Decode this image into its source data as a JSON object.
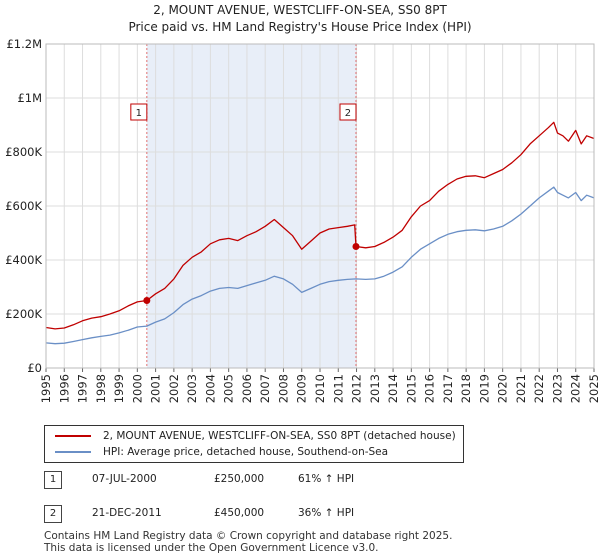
{
  "colors": {
    "property_line": "#c00000",
    "hpi_line": "#6a8fc6",
    "shade": "#e8eef8",
    "grid": "#dddddd",
    "marker_line": "#e07070"
  },
  "chart_data": {
    "type": "line",
    "title": "2, MOUNT AVENUE, WESTCLIFF-ON-SEA, SS0 8PT",
    "subtitle": "Price paid vs. HM Land Registry's House Price Index (HPI)",
    "xlabel": "",
    "ylabel": "",
    "xlim": [
      1995.0,
      2025.0
    ],
    "ylim": [
      0,
      1200000
    ],
    "yticks": [
      {
        "value": 0,
        "label": "£0"
      },
      {
        "value": 200000,
        "label": "£200K"
      },
      {
        "value": 400000,
        "label": "£400K"
      },
      {
        "value": 600000,
        "label": "£600K"
      },
      {
        "value": 800000,
        "label": "£800K"
      },
      {
        "value": 1000000,
        "label": "£1M"
      },
      {
        "value": 1200000,
        "label": "£1.2M"
      }
    ],
    "xticks": [
      "1995",
      "1996",
      "1997",
      "1998",
      "1999",
      "2000",
      "2001",
      "2002",
      "2003",
      "2004",
      "2005",
      "2006",
      "2007",
      "2008",
      "2009",
      "2010",
      "2011",
      "2012",
      "2013",
      "2014",
      "2015",
      "2016",
      "2017",
      "2018",
      "2019",
      "2020",
      "2021",
      "2022",
      "2023",
      "2024",
      "2025"
    ],
    "shaded_range": [
      2000.52,
      2011.97
    ],
    "series": [
      {
        "name": "2, MOUNT AVENUE, WESTCLIFF-ON-SEA, SS0 8PT (detached house)",
        "color": "#c00000",
        "x": [
          1995.0,
          1995.5,
          1996.0,
          1996.5,
          1997.0,
          1997.5,
          1998.0,
          1998.5,
          1999.0,
          1999.5,
          2000.0,
          2000.52,
          2001.0,
          2001.5,
          2002.0,
          2002.5,
          2003.0,
          2003.5,
          2004.0,
          2004.5,
          2005.0,
          2005.5,
          2006.0,
          2006.5,
          2007.0,
          2007.5,
          2008.0,
          2008.5,
          2009.0,
          2009.5,
          2010.0,
          2010.5,
          2011.0,
          2011.5,
          2011.9,
          2011.97,
          2012.5,
          2013.0,
          2013.5,
          2014.0,
          2014.5,
          2015.0,
          2015.5,
          2016.0,
          2016.5,
          2017.0,
          2017.5,
          2018.0,
          2018.5,
          2019.0,
          2019.5,
          2020.0,
          2020.5,
          2021.0,
          2021.5,
          2022.0,
          2022.5,
          2022.8,
          2023.0,
          2023.3,
          2023.6,
          2024.0,
          2024.3,
          2024.6,
          2025.0
        ],
        "values": [
          150000,
          145000,
          148000,
          160000,
          175000,
          185000,
          190000,
          200000,
          212000,
          230000,
          245000,
          250000,
          275000,
          295000,
          330000,
          380000,
          410000,
          430000,
          460000,
          475000,
          480000,
          472000,
          490000,
          505000,
          525000,
          550000,
          520000,
          490000,
          440000,
          470000,
          500000,
          515000,
          520000,
          525000,
          530000,
          450000,
          445000,
          450000,
          465000,
          485000,
          510000,
          560000,
          600000,
          620000,
          655000,
          680000,
          700000,
          710000,
          712000,
          705000,
          720000,
          735000,
          760000,
          790000,
          830000,
          860000,
          890000,
          910000,
          870000,
          860000,
          840000,
          880000,
          830000,
          860000,
          850000
        ]
      },
      {
        "name": "HPI: Average price, detached house, Southend-on-Sea",
        "color": "#6a8fc6",
        "x": [
          1995.0,
          1995.5,
          1996.0,
          1996.5,
          1997.0,
          1997.5,
          1998.0,
          1998.5,
          1999.0,
          1999.5,
          2000.0,
          2000.52,
          2001.0,
          2001.5,
          2002.0,
          2002.5,
          2003.0,
          2003.5,
          2004.0,
          2004.5,
          2005.0,
          2005.5,
          2006.0,
          2006.5,
          2007.0,
          2007.5,
          2008.0,
          2008.5,
          2009.0,
          2009.5,
          2010.0,
          2010.5,
          2011.0,
          2011.5,
          2011.97,
          2012.5,
          2013.0,
          2013.5,
          2014.0,
          2014.5,
          2015.0,
          2015.5,
          2016.0,
          2016.5,
          2017.0,
          2017.5,
          2018.0,
          2018.5,
          2019.0,
          2019.5,
          2020.0,
          2020.5,
          2021.0,
          2021.5,
          2022.0,
          2022.5,
          2022.8,
          2023.0,
          2023.3,
          2023.6,
          2024.0,
          2024.3,
          2024.6,
          2025.0
        ],
        "values": [
          93000,
          90000,
          92000,
          98000,
          105000,
          112000,
          117000,
          122000,
          130000,
          140000,
          152000,
          155000,
          170000,
          182000,
          205000,
          235000,
          255000,
          268000,
          285000,
          295000,
          298000,
          295000,
          305000,
          315000,
          325000,
          340000,
          330000,
          310000,
          280000,
          295000,
          310000,
          320000,
          325000,
          328000,
          330000,
          328000,
          330000,
          340000,
          355000,
          375000,
          410000,
          440000,
          460000,
          480000,
          495000,
          505000,
          510000,
          512000,
          508000,
          515000,
          525000,
          545000,
          570000,
          600000,
          630000,
          655000,
          670000,
          650000,
          640000,
          630000,
          650000,
          620000,
          640000,
          630000
        ]
      }
    ],
    "sales": [
      {
        "marker": "1",
        "x": 2000.52,
        "value": 250000
      },
      {
        "marker": "2",
        "x": 2011.97,
        "value": 450000
      }
    ]
  },
  "legend": {
    "property": "2, MOUNT AVENUE, WESTCLIFF-ON-SEA, SS0 8PT (detached house)",
    "hpi": "HPI: Average price, detached house, Southend-on-Sea"
  },
  "transactions": [
    {
      "marker": "1",
      "date": "07-JUL-2000",
      "price": "£250,000",
      "hpi_change": "61% ↑ HPI"
    },
    {
      "marker": "2",
      "date": "21-DEC-2011",
      "price": "£450,000",
      "hpi_change": "36% ↑ HPI"
    }
  ],
  "footer": {
    "line1": "Contains HM Land Registry data © Crown copyright and database right 2025.",
    "line2": "This data is licensed under the Open Government Licence v3.0."
  }
}
